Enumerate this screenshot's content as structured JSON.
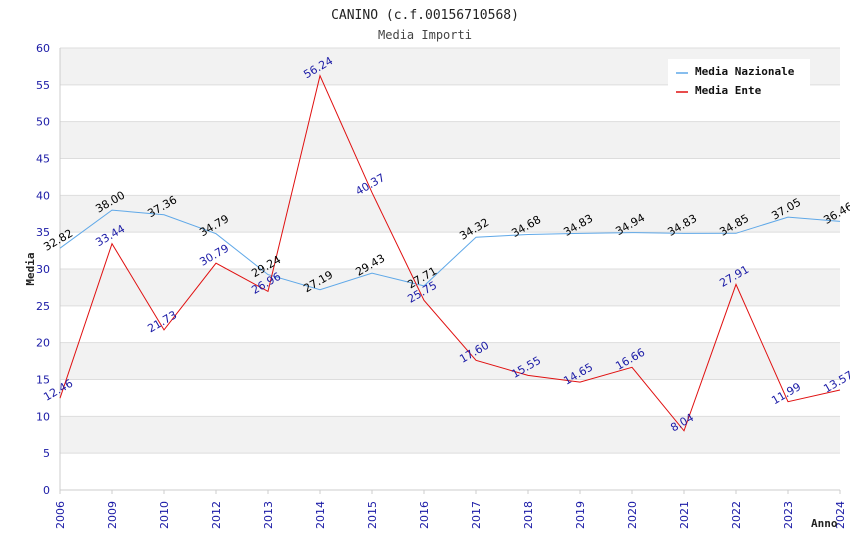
{
  "title": "CANINO (c.f.00156710568)",
  "subtitle": "Media Importi",
  "chart_data": {
    "type": "line",
    "xlabel": "Anno",
    "ylabel": "Media",
    "ylim": [
      0,
      60
    ],
    "yticks": [
      0,
      5,
      10,
      15,
      20,
      25,
      30,
      35,
      40,
      45,
      50,
      55,
      60
    ],
    "grid": "horizontal bands",
    "legend_position": "top-right",
    "categories": [
      "2006",
      "2009",
      "2010",
      "2012",
      "2013",
      "2014",
      "2015",
      "2016",
      "2017",
      "2018",
      "2019",
      "2020",
      "2021",
      "2022",
      "2023",
      "2024"
    ],
    "series": [
      {
        "name": "Media Nazionale",
        "color": "#5fa8e8",
        "label_color": "#000000",
        "values": [
          32.82,
          38.0,
          37.36,
          34.79,
          29.24,
          27.19,
          29.43,
          27.71,
          34.32,
          34.68,
          34.83,
          34.94,
          34.83,
          34.85,
          37.05,
          36.46
        ],
        "labels": [
          "32.82",
          "38.00",
          "37.36",
          "34.79",
          "29.24",
          "27.19",
          "29.43",
          "27.71",
          "34.32",
          "34.68",
          "34.83",
          "34.94",
          "34.83",
          "34.85",
          "37.05",
          "36.46"
        ]
      },
      {
        "name": "Media Ente",
        "color": "#e01010",
        "label_color": "#1a1aa6",
        "values": [
          12.46,
          33.44,
          21.73,
          30.79,
          26.96,
          56.24,
          40.37,
          25.75,
          17.6,
          15.55,
          14.65,
          16.66,
          8.04,
          27.91,
          11.99,
          13.57
        ],
        "labels": [
          "12.46",
          "33.44",
          "21.73",
          "30.79",
          "26.96",
          "56.24",
          "40.37",
          "25.75",
          "17.60",
          "15.55",
          "14.65",
          "16.66",
          "8.04",
          "27.91",
          "11.99",
          "13.57"
        ]
      }
    ]
  }
}
